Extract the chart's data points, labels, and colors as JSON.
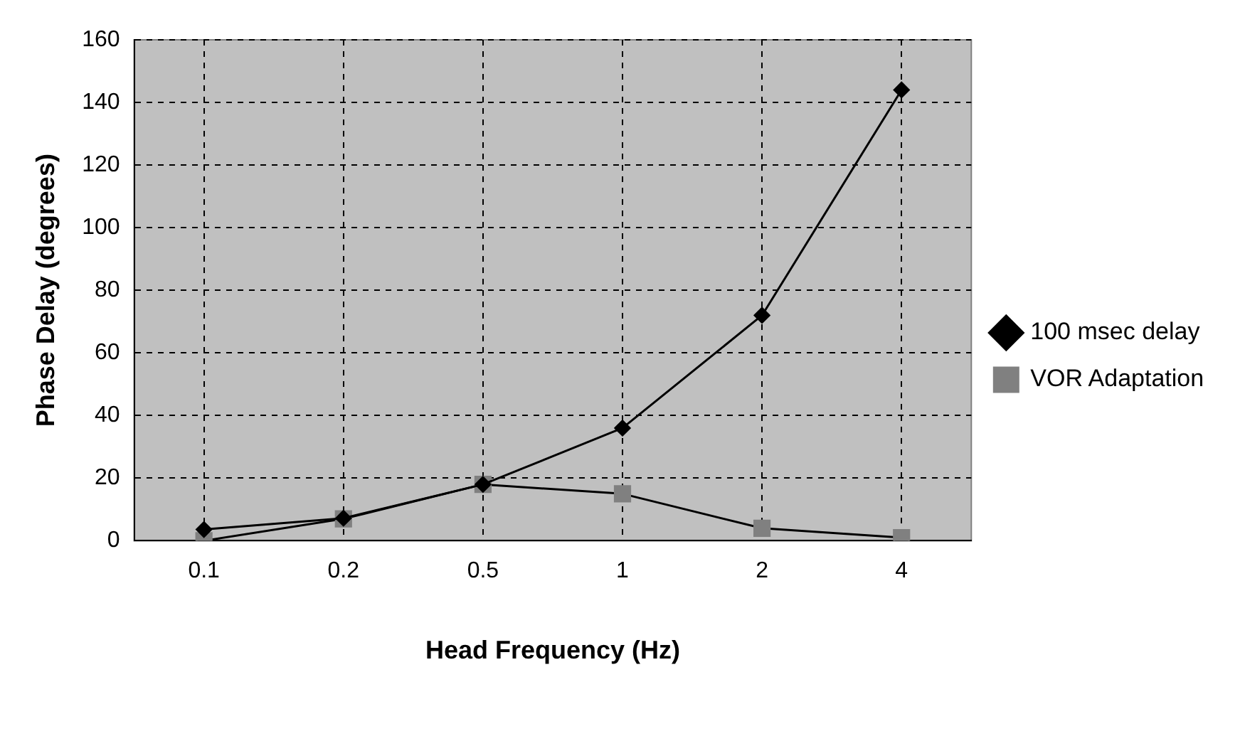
{
  "chart_data": {
    "type": "line",
    "xlabel": "Head Frequency (Hz)",
    "ylabel": "Phase Delay (degrees)",
    "categories": [
      "0.1",
      "0.2",
      "0.5",
      "1",
      "2",
      "4"
    ],
    "series": [
      {
        "name": "100 msec delay",
        "color": "#000000",
        "marker": "diamond",
        "values": [
          3.6,
          7.2,
          18,
          36,
          72,
          144
        ]
      },
      {
        "name": "VOR Adaptation",
        "color": "#808080",
        "marker": "square",
        "values": [
          0,
          7,
          18,
          15,
          4,
          1
        ]
      }
    ],
    "ylim": [
      0,
      160
    ],
    "yticks": [
      0,
      20,
      40,
      60,
      80,
      100,
      120,
      140,
      160
    ],
    "grid": true,
    "legend": "right"
  }
}
